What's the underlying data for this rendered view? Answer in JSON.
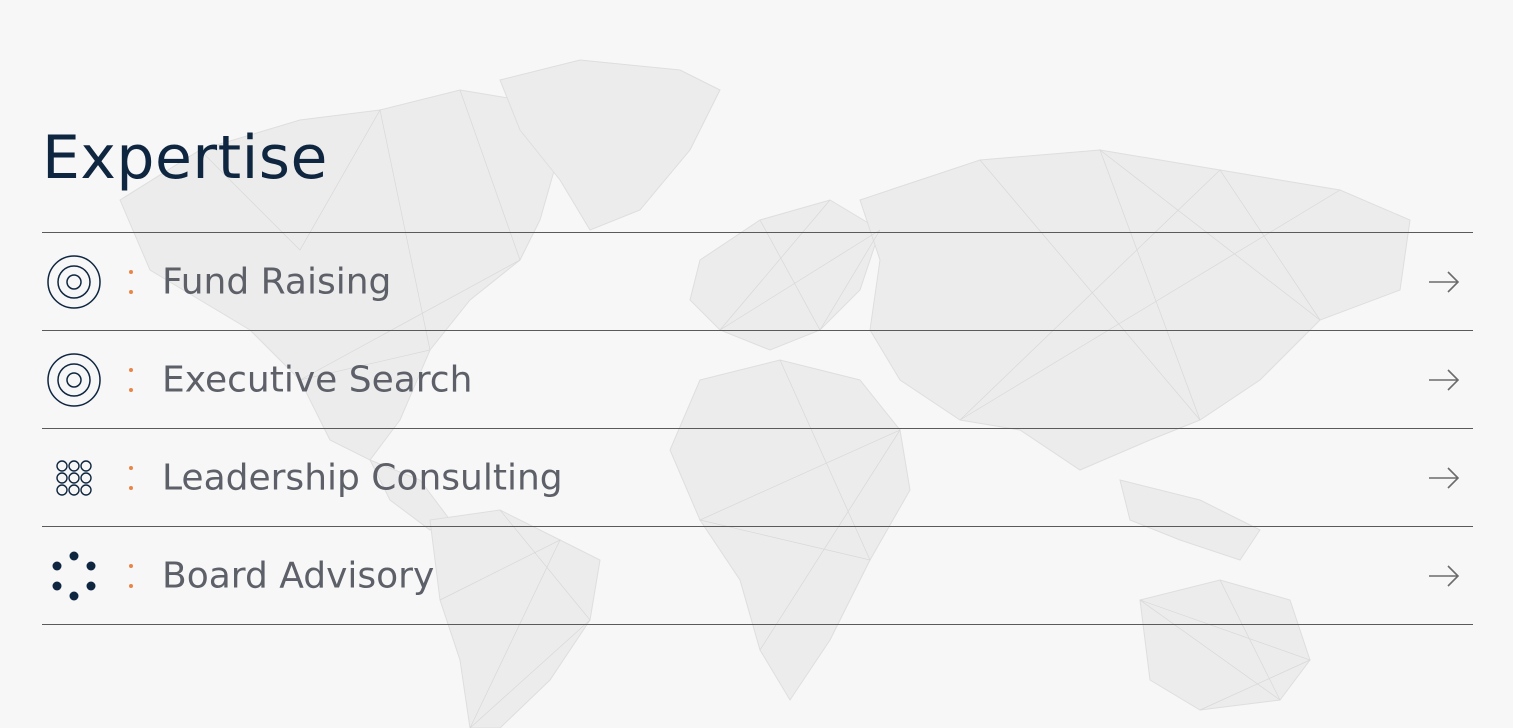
{
  "section": {
    "title": "Expertise"
  },
  "colors": {
    "title": "#0f2640",
    "label": "#5d6068",
    "accent_dots": "#e8864a",
    "divider": "#5a5a5a",
    "icon": "#0f2640",
    "background": "#f7f7f7"
  },
  "items": [
    {
      "label": "Fund Raising",
      "icon": "concentric-circles-icon"
    },
    {
      "label": "Executive Search",
      "icon": "concentric-circles-icon"
    },
    {
      "label": "Leadership Consulting",
      "icon": "circle-grid-icon"
    },
    {
      "label": "Board Advisory",
      "icon": "dot-ring-icon"
    }
  ]
}
